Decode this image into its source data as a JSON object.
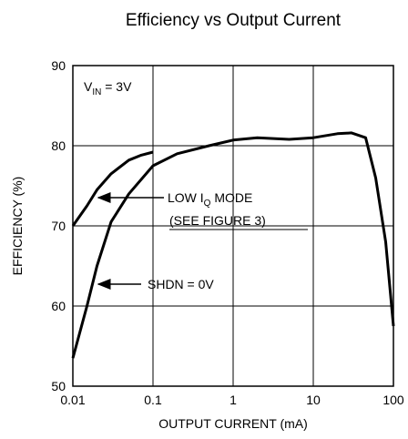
{
  "chart_data": {
    "type": "line",
    "title": "Efficiency vs Output Current",
    "xlabel": "OUTPUT CURRENT (mA)",
    "ylabel": "EFFICIENCY (%)",
    "xscale": "log",
    "xlim": [
      0.01,
      100
    ],
    "xticks": [
      0.01,
      0.1,
      1,
      10,
      100
    ],
    "ylim": [
      50,
      90
    ],
    "yticks": [
      50,
      60,
      70,
      80,
      90
    ],
    "grid": true,
    "series": [
      {
        "color": "#000000",
        "x": [
          0.01,
          0.015,
          0.02,
          0.03,
          0.05,
          0.07,
          0.1
        ],
        "values": [
          70,
          72.5,
          74.5,
          76.5,
          78.2,
          78.8,
          79.2
        ]
      },
      {
        "color": "#000000",
        "x": [
          0.01,
          0.015,
          0.02,
          0.03,
          0.05,
          0.1,
          0.2,
          0.5,
          1,
          2,
          5,
          10,
          20,
          30,
          45,
          60,
          80,
          100
        ],
        "values": [
          53.5,
          60,
          65,
          70.5,
          74,
          77.5,
          79,
          80,
          80.7,
          81,
          80.8,
          81,
          81.5,
          81.6,
          81,
          76,
          68,
          57.5
        ]
      }
    ],
    "annotations": [
      {
        "text": "V",
        "sub": "IN",
        "rest": " = 3V"
      },
      {
        "text": "LOW I",
        "sub": "Q",
        "rest": " MODE"
      },
      {
        "text": "(SEE FIGURE 3)"
      },
      {
        "text": "SHDN = 0V"
      }
    ]
  }
}
